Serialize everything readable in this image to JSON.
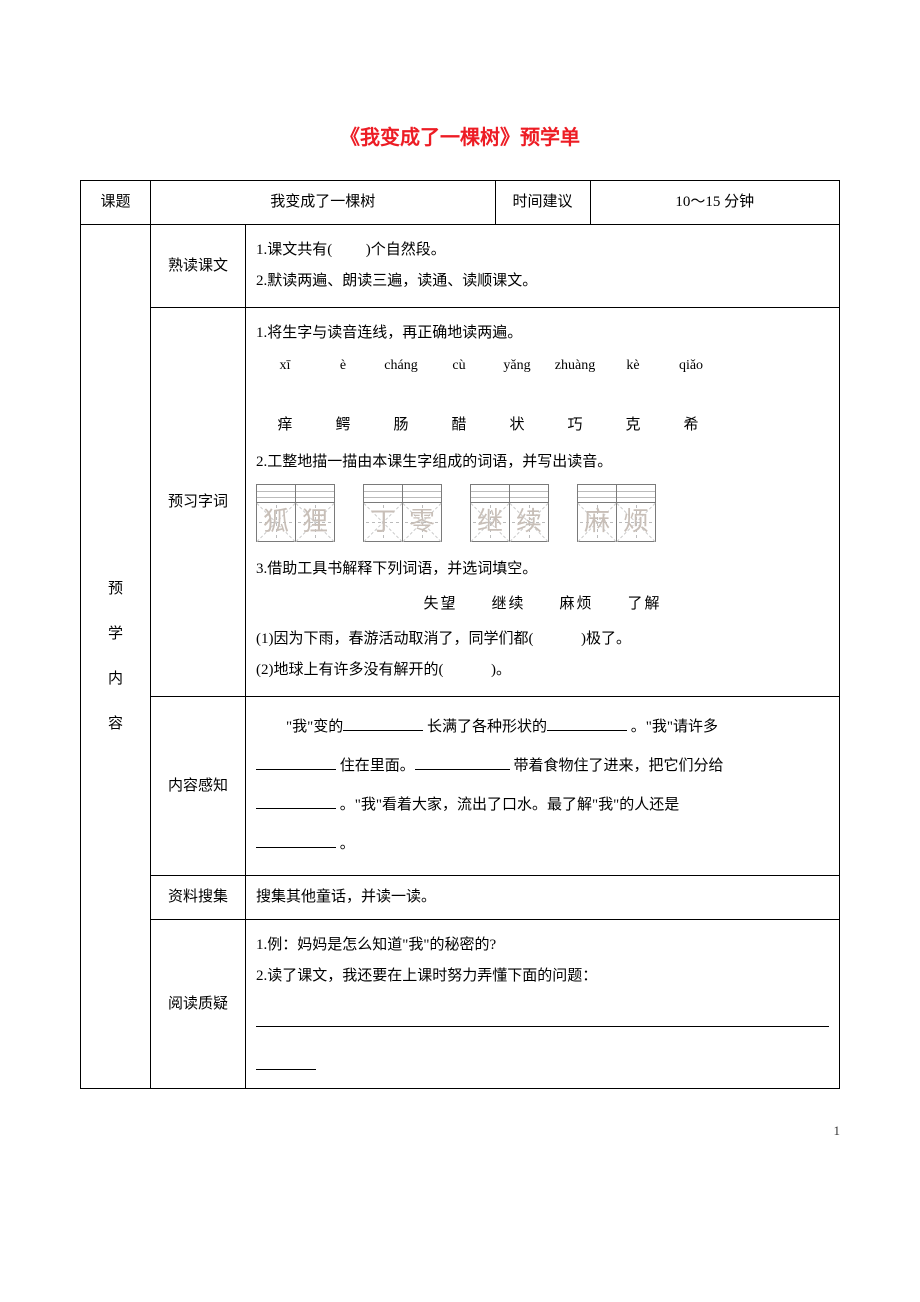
{
  "title": "《我变成了一棵树》预学单",
  "header": {
    "topic_label": "课题",
    "topic_value": "我变成了一棵树",
    "time_label": "时间建议",
    "time_value": "10～15 分钟"
  },
  "side_label": "预学内容",
  "sections": {
    "read": {
      "label": "熟读课文",
      "line1_a": "1.课文共有(",
      "line1_b": ")个自然段。",
      "line2": "2.默读两遍、朗读三遍，读通、读顺课文。"
    },
    "vocab": {
      "label": "预习字词",
      "line1": "1.将生字与读音连线，再正确地读两遍。",
      "pinyin": [
        "xī",
        "è",
        "cháng",
        "cù",
        "yǎng",
        "zhuàng",
        "kè",
        "qiǎo"
      ],
      "chars": [
        "痒",
        "鳄",
        "肠",
        "醋",
        "状",
        "巧",
        "克",
        "希"
      ],
      "line2": "2.工整地描一描由本课生字组成的词语，并写出读音。",
      "trace_words": [
        [
          "狐",
          "狸"
        ],
        [
          "丁",
          "零"
        ],
        [
          "继",
          "续"
        ],
        [
          "麻",
          "烦"
        ]
      ],
      "line3": "3.借助工具书解释下列词语，并选词填空。",
      "options": "失望　　继续　　麻烦　　了解",
      "q1_a": "(1)因为下雨，春游活动取消了，同学们都(",
      "q1_b": ")极了。",
      "q2_a": "(2)地球上有许多没有解开的(",
      "q2_b": ")。"
    },
    "content": {
      "label": "内容感知",
      "t1": "　　\"我\"变的",
      "t2": "长满了各种形状的",
      "t3": "。\"我\"请许多",
      "t4": "住在里面。",
      "t5": "带着食物住了进来，把它们分给",
      "t6": "。\"我\"看着大家，流出了口水。最了解\"我\"的人还是",
      "t7": "。"
    },
    "collect": {
      "label": "资料搜集",
      "text": "搜集其他童话，并读一读。"
    },
    "question": {
      "label": "阅读质疑",
      "line1": "1.例：妈妈是怎么知道\"我\"的秘密的?",
      "line2": "2.读了课文，我还要在上课时努力弄懂下面的问题："
    }
  },
  "page_number": "1"
}
